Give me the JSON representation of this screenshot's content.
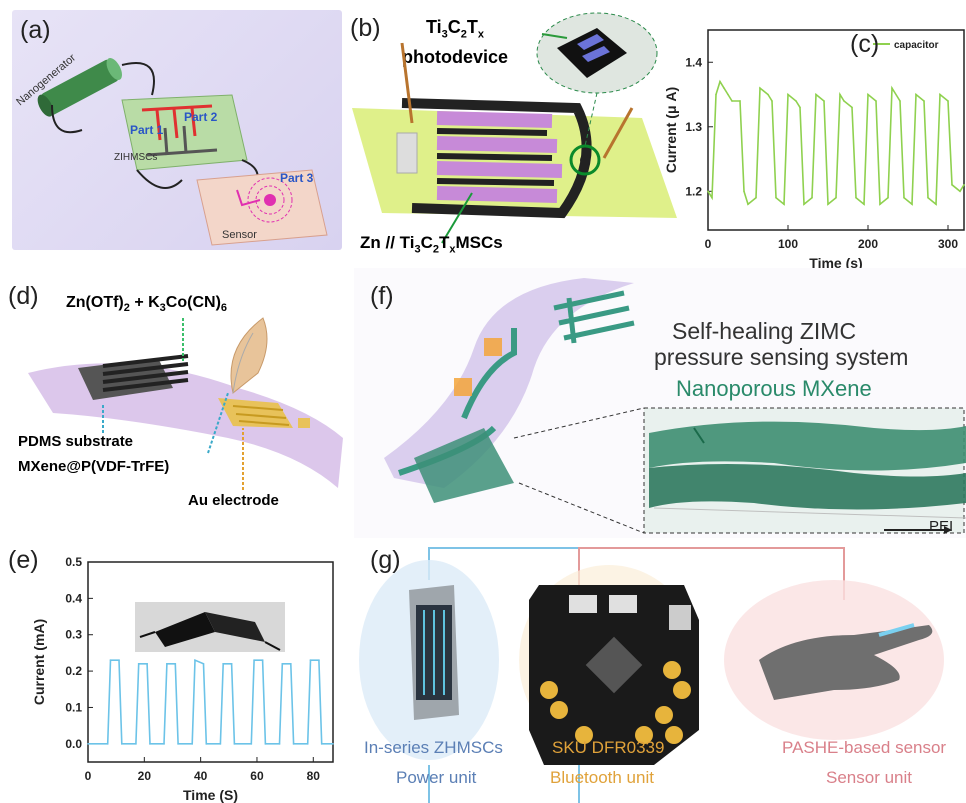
{
  "panel_a": {
    "label": "(a)",
    "nanogenerator": "Nanogenerator",
    "part1": "Part 1",
    "part2": "Part 2",
    "part3": "Part 3",
    "zihmscs": "ZIHMSCs",
    "sensor": "Sensor"
  },
  "panel_b": {
    "label": "(b)",
    "title_main": "Ti",
    "title_sub1": "3",
    "title_c": "C",
    "title_sub2": "2",
    "title_t": "T",
    "title_sub3": "x",
    "title_line2": "photodevice",
    "bottom_label_pre": "Zn // Ti",
    "bottom_sub1": "3",
    "bottom_c": "C",
    "bottom_sub2": "2",
    "bottom_t": "T",
    "bottom_sub3": "x",
    "bottom_post": "MSCs"
  },
  "panel_c": {
    "label": "(c)",
    "legend": "capacitor",
    "xlabel": "Time (s)",
    "ylabel": "Current (μ A)",
    "xticks": [
      "0",
      "100",
      "200",
      "300"
    ],
    "yticks": [
      "1.2",
      "1.3",
      "1.4"
    ]
  },
  "panel_d": {
    "label": "(d)",
    "formula_a": "Zn(OTf)",
    "formula_sub1": "2",
    "formula_b": " + K",
    "formula_sub2": "3",
    "formula_c": "Co(CN)",
    "formula_sub3": "6",
    "pdms": "PDMS substrate",
    "mxene": "MXene@P(VDF-TrFE)",
    "au": "Au electrode"
  },
  "panel_e": {
    "label": "(e)",
    "xlabel": "Time (S)",
    "ylabel": "Current (mA)",
    "xticks": [
      "0",
      "20",
      "40",
      "60",
      "80"
    ],
    "yticks": [
      "0.0",
      "0.1",
      "0.2",
      "0.3",
      "0.4",
      "0.5"
    ]
  },
  "panel_f": {
    "label": "(f)",
    "title_line1": "Self-healing ZIMC",
    "title_line2": "pressure sensing system",
    "nanoporous": "Nanoporous MXene",
    "pei": "PEI"
  },
  "panel_g": {
    "label": "(g)",
    "power_title": "In-series ZHMSCs",
    "power_sub": "Power unit",
    "bt_title": "SKU DFR0339",
    "bt_sub": "Bluetooth unit",
    "sensor_title": "PASHE-based sensor",
    "sensor_sub": "Sensor unit"
  },
  "colors": {
    "green_line": "#8fd14f",
    "blue_line": "#6cc3e8",
    "power_blue": "#5b7fb5",
    "bt_orange": "#e0a23a",
    "sensor_red": "#d9808a"
  },
  "chart_data": [
    {
      "type": "line",
      "panel": "c",
      "xlabel": "Time (s)",
      "ylabel": "Current (μ A)",
      "xlim": [
        0,
        320
      ],
      "ylim": [
        1.14,
        1.45
      ],
      "series": [
        {
          "name": "capacitor",
          "x": [
            0,
            5,
            10,
            15,
            20,
            25,
            30,
            40,
            45,
            50,
            60,
            65,
            75,
            80,
            85,
            95,
            100,
            110,
            115,
            120,
            130,
            135,
            145,
            150,
            160,
            165,
            170,
            180,
            185,
            195,
            200,
            210,
            215,
            225,
            230,
            240,
            245,
            255,
            260,
            270,
            275,
            285,
            290,
            300,
            305,
            315,
            320
          ],
          "y": [
            1.2,
            1.19,
            1.35,
            1.37,
            1.36,
            1.35,
            1.34,
            1.34,
            1.2,
            1.18,
            1.19,
            1.36,
            1.35,
            1.34,
            1.19,
            1.18,
            1.35,
            1.34,
            1.33,
            1.18,
            1.19,
            1.35,
            1.34,
            1.18,
            1.19,
            1.35,
            1.34,
            1.33,
            1.19,
            1.18,
            1.35,
            1.34,
            1.18,
            1.19,
            1.36,
            1.34,
            1.19,
            1.18,
            1.35,
            1.34,
            1.19,
            1.18,
            1.35,
            1.34,
            1.21,
            1.2,
            1.21
          ]
        }
      ]
    },
    {
      "type": "line",
      "panel": "e",
      "xlabel": "Time (S)",
      "ylabel": "Current (mA)",
      "xlim": [
        0,
        87
      ],
      "ylim": [
        -0.05,
        0.5
      ],
      "series": [
        {
          "name": "",
          "x": [
            0,
            7,
            8,
            11,
            12,
            17,
            18,
            21,
            22,
            27,
            28,
            31,
            32,
            37,
            38,
            41,
            42,
            47,
            48,
            51,
            52,
            58,
            59,
            62,
            63,
            68,
            69,
            72,
            73,
            78,
            79,
            82,
            83,
            87
          ],
          "y": [
            0.0,
            0.0,
            0.23,
            0.23,
            0.0,
            0.0,
            0.22,
            0.22,
            0.0,
            0.0,
            0.22,
            0.22,
            0.0,
            0.0,
            0.23,
            0.22,
            0.0,
            0.0,
            0.22,
            0.22,
            0.0,
            0.0,
            0.23,
            0.23,
            0.0,
            0.0,
            0.22,
            0.22,
            0.0,
            0.0,
            0.23,
            0.23,
            0.0,
            0.0
          ]
        }
      ]
    }
  ]
}
